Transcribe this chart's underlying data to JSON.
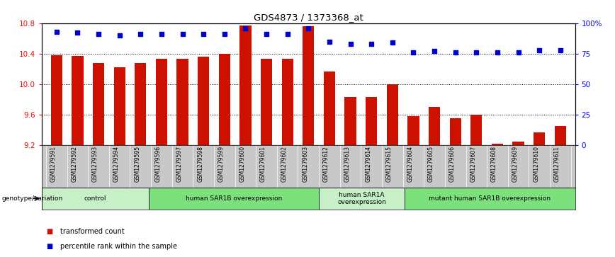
{
  "title": "GDS4873 / 1373368_at",
  "samples": [
    "GSM1279591",
    "GSM1279592",
    "GSM1279593",
    "GSM1279594",
    "GSM1279595",
    "GSM1279596",
    "GSM1279597",
    "GSM1279598",
    "GSM1279599",
    "GSM1279600",
    "GSM1279601",
    "GSM1279602",
    "GSM1279603",
    "GSM1279612",
    "GSM1279613",
    "GSM1279614",
    "GSM1279615",
    "GSM1279604",
    "GSM1279605",
    "GSM1279606",
    "GSM1279607",
    "GSM1279608",
    "GSM1279609",
    "GSM1279610",
    "GSM1279611"
  ],
  "bar_values": [
    10.38,
    10.37,
    10.28,
    10.22,
    10.28,
    10.33,
    10.33,
    10.36,
    10.4,
    10.77,
    10.33,
    10.33,
    10.76,
    10.17,
    9.83,
    9.83,
    10.0,
    9.58,
    9.7,
    9.55,
    9.6,
    9.22,
    9.25,
    9.37,
    9.45
  ],
  "percentile_values": [
    93,
    92,
    91,
    90,
    91,
    91,
    91,
    91,
    91,
    96,
    91,
    91,
    96,
    85,
    83,
    83,
    84,
    76,
    77,
    76,
    76,
    76,
    76,
    78,
    78
  ],
  "groups": [
    {
      "label": "control",
      "start": 0,
      "end": 4,
      "color": "#c8f0c8"
    },
    {
      "label": "human SAR1B overexpression",
      "start": 5,
      "end": 12,
      "color": "#7ce07c"
    },
    {
      "label": "human SAR1A\noverexpression",
      "start": 13,
      "end": 16,
      "color": "#c8f0c8"
    },
    {
      "label": "mutant human SAR1B overexpression",
      "start": 17,
      "end": 24,
      "color": "#7ce07c"
    }
  ],
  "ylim": [
    9.2,
    10.8
  ],
  "ylim_right": [
    0,
    100
  ],
  "yticks_left": [
    9.2,
    9.6,
    10.0,
    10.4,
    10.8
  ],
  "yticks_right": [
    0,
    25,
    50,
    75,
    100
  ],
  "bar_color": "#cc1100",
  "dot_color": "#0000cc",
  "bar_width": 0.55,
  "legend_items": [
    {
      "label": "transformed count",
      "color": "#cc1100"
    },
    {
      "label": "percentile rank within the sample",
      "color": "#0000cc"
    }
  ],
  "group_label": "genotype/variation",
  "xtick_bg_color": "#c8c8c8",
  "plot_bg_color": "#ffffff"
}
